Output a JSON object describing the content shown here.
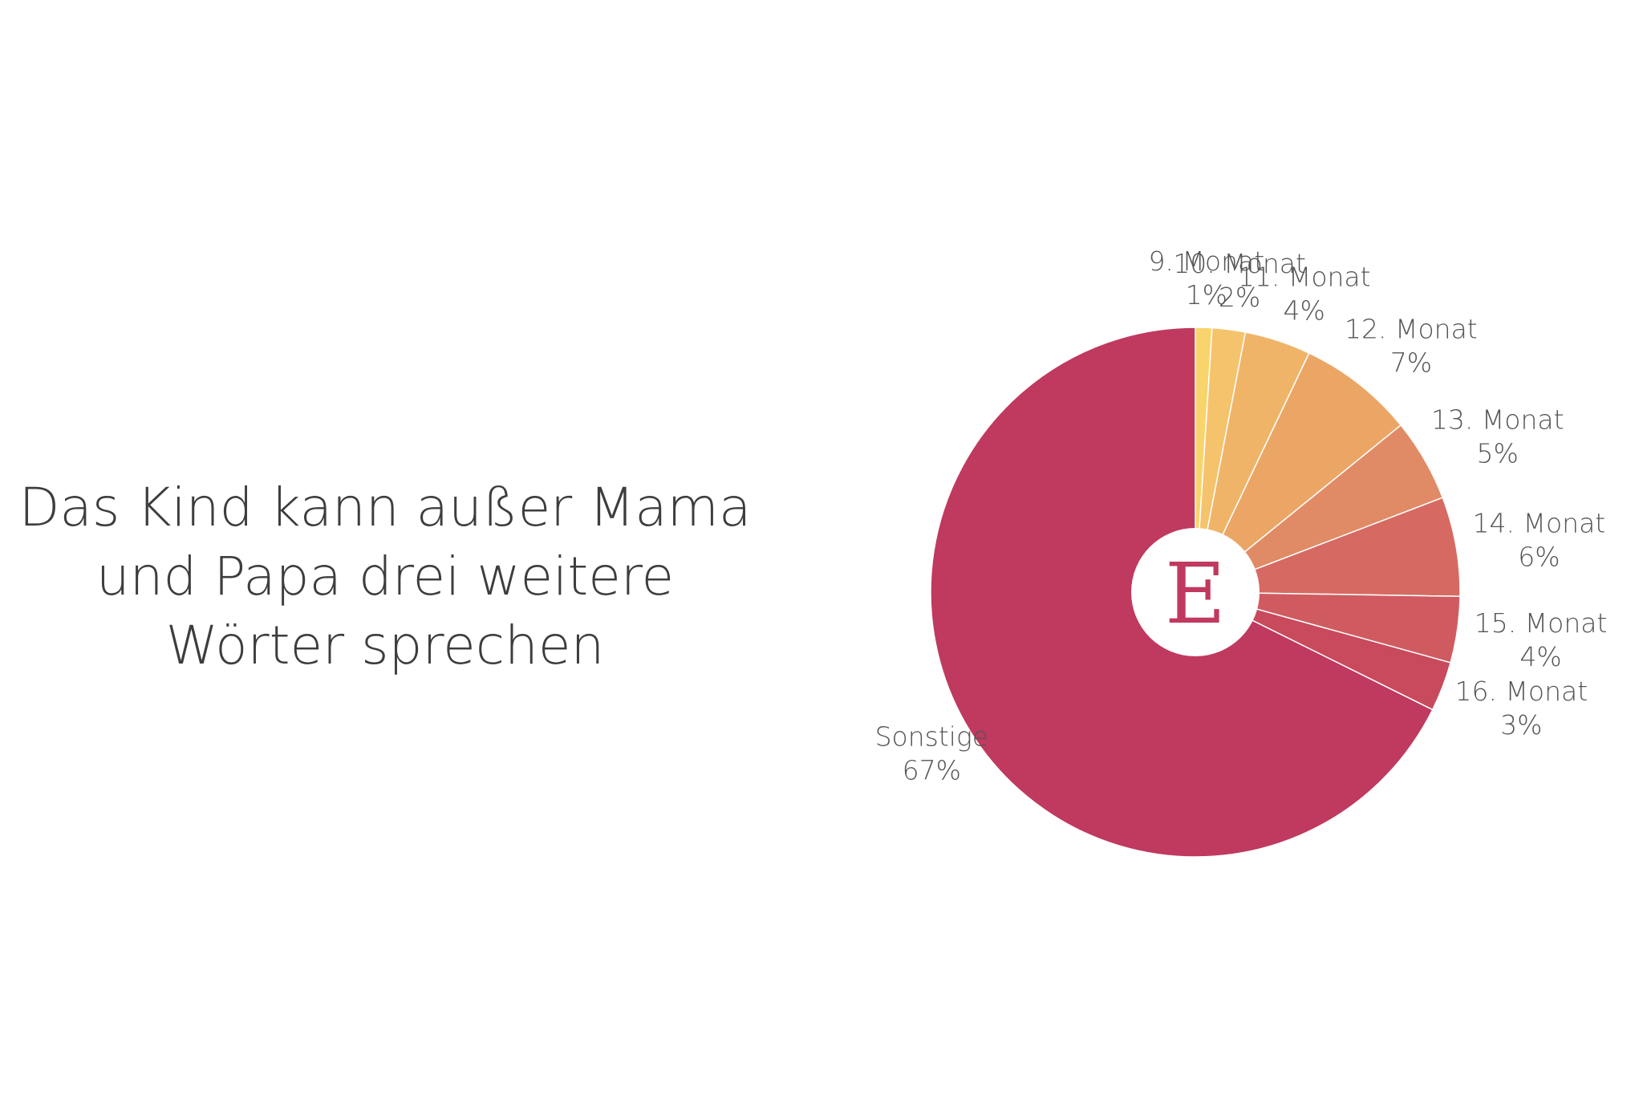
{
  "title": {
    "lines": [
      "Das Kind kann außer Mama",
      "und Papa drei weitere",
      "Wörter sprechen"
    ]
  },
  "logo": {
    "letter": "E",
    "color": "#c0395e"
  },
  "chart_data": {
    "type": "pie",
    "title": "Das Kind kann außer Mama und Papa drei weitere Wörter sprechen",
    "center_logo": "E",
    "slices": [
      {
        "label": "9. Monat",
        "value": 1,
        "value_label": "1%",
        "color": "#f9d46c"
      },
      {
        "label": "10. Monat",
        "value": 2,
        "value_label": "2%",
        "color": "#f5c36c"
      },
      {
        "label": "11. Monat",
        "value": 4,
        "value_label": "4%",
        "color": "#f0b468"
      },
      {
        "label": "12. Monat",
        "value": 7,
        "value_label": "7%",
        "color": "#eba665"
      },
      {
        "label": "13. Monat",
        "value": 5,
        "value_label": "5%",
        "color": "#e08b65"
      },
      {
        "label": "14. Monat",
        "value": 6,
        "value_label": "6%",
        "color": "#d66a62"
      },
      {
        "label": "15. Monat",
        "value": 4,
        "value_label": "4%",
        "color": "#cf5b60"
      },
      {
        "label": "16. Monat",
        "value": 3,
        "value_label": "3%",
        "color": "#c84a5c"
      },
      {
        "label": "Sonstige",
        "value": 67,
        "value_label": "67%",
        "color": "#c0395e"
      }
    ]
  }
}
